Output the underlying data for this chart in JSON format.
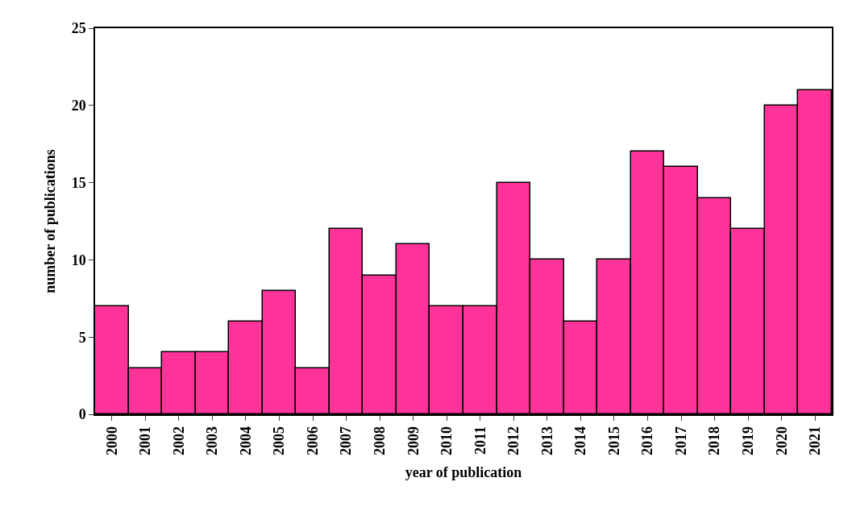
{
  "chart_data": {
    "type": "bar",
    "xlabel": "year of publication",
    "ylabel": "number of publications",
    "categories": [
      "2000",
      "2001",
      "2002",
      "2003",
      "2004",
      "2005",
      "2006",
      "2007",
      "2008",
      "2009",
      "2010",
      "2011",
      "2012",
      "2013",
      "2014",
      "2015",
      "2016",
      "2017",
      "2018",
      "2019",
      "2020",
      "2021"
    ],
    "values": [
      7,
      3,
      4,
      4,
      6,
      8,
      3,
      12,
      9,
      11,
      7,
      7,
      15,
      10,
      6,
      10,
      17,
      16,
      14,
      12,
      20,
      21
    ],
    "color": "#ff3399",
    "ylim": [
      0,
      25
    ],
    "yticks": [
      0,
      5,
      10,
      15,
      20,
      25
    ],
    "grid": false,
    "legend": false
  }
}
